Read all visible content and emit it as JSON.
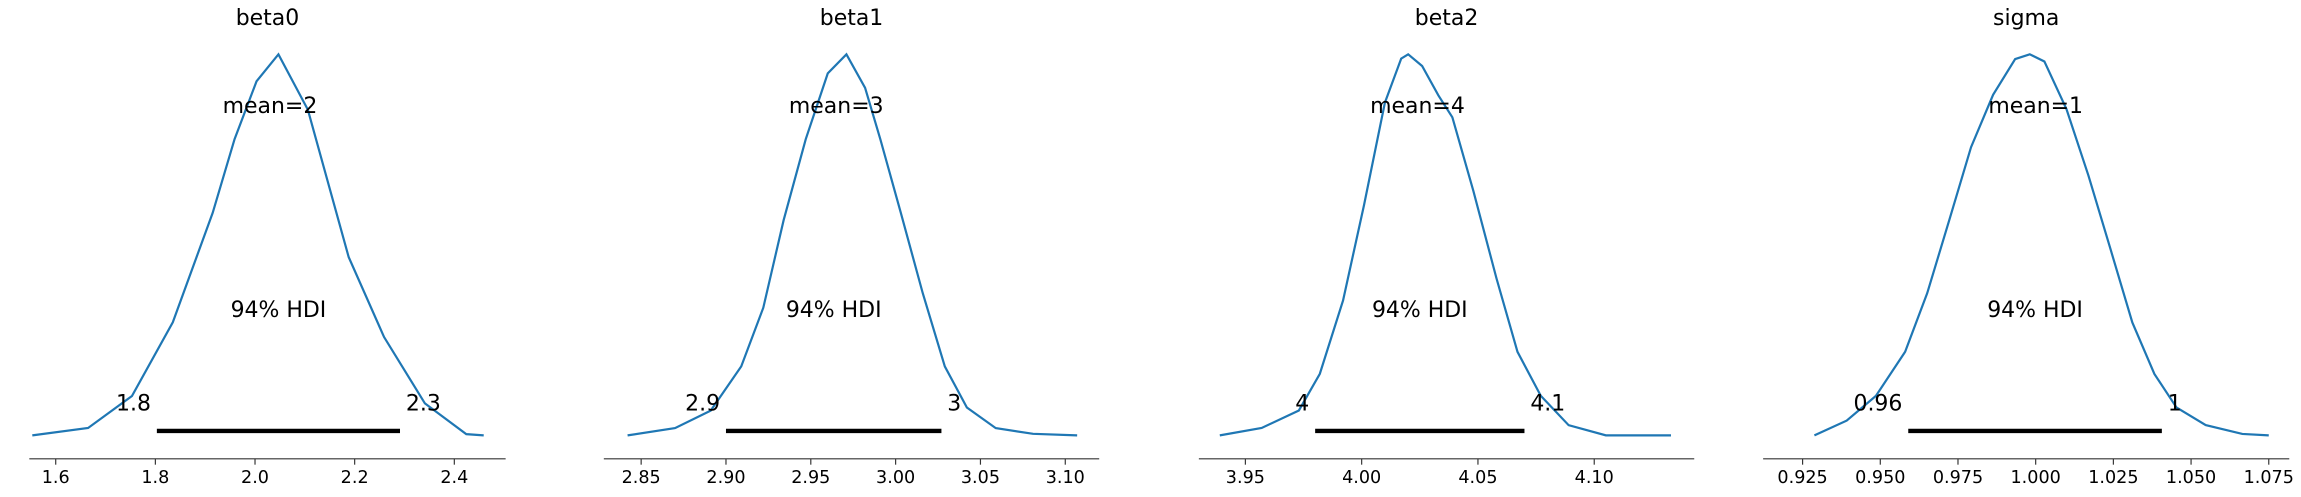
{
  "chart_data": [
    {
      "type": "kde",
      "title": "beta0",
      "color": "#1f77b4",
      "x": [
        1.553,
        1.665,
        1.753,
        1.835,
        1.915,
        1.959,
        2.003,
        2.047,
        2.106,
        2.188,
        2.259,
        2.341,
        2.424,
        2.459
      ],
      "values": [
        0,
        0.06,
        0.32,
        0.92,
        1.81,
        2.41,
        2.88,
        3.1,
        2.65,
        1.45,
        0.8,
        0.26,
        0.01,
        0
      ],
      "mean": 2.03,
      "mean_label": "mean=2",
      "hdi_label": "94% HDI",
      "hdi": [
        1.803,
        2.291
      ],
      "hdi_labels": [
        "1.8",
        "2.3"
      ],
      "xlim": [
        1.547,
        2.503
      ],
      "xticks": [
        1.6,
        1.8,
        {
          "value": 2,
          "label": "2.0"
        },
        2.2,
        2.4
      ]
    },
    {
      "type": "kde",
      "title": "beta1",
      "color": "#1f77b4",
      "x": [
        2.842,
        2.87,
        2.891,
        2.909,
        2.922,
        2.934,
        2.947,
        2.96,
        2.971,
        2.982,
        2.991,
        3.003,
        3.016,
        3.029,
        3.042,
        3.059,
        3.081,
        3.107
      ],
      "values": [
        0,
        0.19,
        0.65,
        1.81,
        3.35,
        5.65,
        7.77,
        9.5,
        10.0,
        9.12,
        7.77,
        5.85,
        3.73,
        1.81,
        0.73,
        0.19,
        0.04,
        0
      ],
      "mean": 2.965,
      "mean_label": "mean=3",
      "hdi_label": "94% HDI",
      "hdi": [
        2.9,
        3.027
      ],
      "hdi_labels": [
        "2.9",
        "3"
      ],
      "xlim": [
        2.828,
        3.12
      ],
      "xticks": [
        2.85,
        {
          "value": 2.9,
          "label": "2.90"
        },
        2.95,
        {
          "value": 3,
          "label": "3.00"
        },
        3.05,
        {
          "value": 3.1,
          "label": "3.10"
        }
      ]
    },
    {
      "type": "kde",
      "title": "beta2",
      "color": "#1f77b4",
      "x": [
        3.939,
        3.957,
        3.973,
        3.982,
        3.992,
        4.001,
        4.01,
        4.017,
        4.02,
        4.026,
        4.033,
        4.039,
        4.048,
        4.058,
        4.067,
        4.077,
        4.089,
        4.105,
        4.133
      ],
      "values": [
        0,
        0.29,
        0.98,
        2.42,
        5.31,
        9.06,
        13.1,
        14.83,
        15.0,
        14.54,
        13.38,
        12.52,
        9.63,
        6.17,
        3.29,
        1.56,
        0.4,
        0,
        0
      ],
      "mean": 4.024,
      "mean_label": "mean=4",
      "hdi_label": "94% HDI",
      "hdi": [
        3.98,
        4.07
      ],
      "hdi_labels": [
        "4",
        "4.1"
      ],
      "xlim": [
        3.93,
        4.143
      ],
      "xticks": [
        3.95,
        {
          "value": 4,
          "label": "4.00"
        },
        4.05,
        {
          "value": 4.1,
          "label": "4.10"
        }
      ]
    },
    {
      "type": "kde",
      "title": "sigma",
      "color": "#1f77b4",
      "x": [
        0.9288,
        0.9392,
        0.9486,
        0.958,
        0.9651,
        0.9722,
        0.9792,
        0.9863,
        0.9934,
        0.9981,
        1.0028,
        1.0099,
        1.017,
        1.0241,
        1.0311,
        1.0382,
        1.0453,
        1.0547,
        1.0665,
        1.075
      ],
      "values": [
        0,
        0.62,
        1.66,
        3.51,
        5.97,
        9.04,
        12.1,
        14.3,
        15.8,
        16.0,
        15.7,
        13.7,
        10.9,
        7.81,
        4.74,
        2.58,
        1.17,
        0.43,
        0.06,
        0
      ],
      "mean": 1.0,
      "mean_label": "mean=1",
      "hdi_label": "94% HDI",
      "hdi": [
        0.959,
        1.0406
      ],
      "hdi_labels": [
        "0.96",
        "1"
      ],
      "xlim": [
        0.9123,
        1.0816
      ],
      "xticks": [
        0.925,
        {
          "value": 0.95,
          "label": "0.950"
        },
        0.975,
        {
          "value": 1,
          "label": "1.000"
        },
        1.025,
        {
          "value": 1.05,
          "label": "1.050"
        },
        1.075
      ]
    }
  ]
}
